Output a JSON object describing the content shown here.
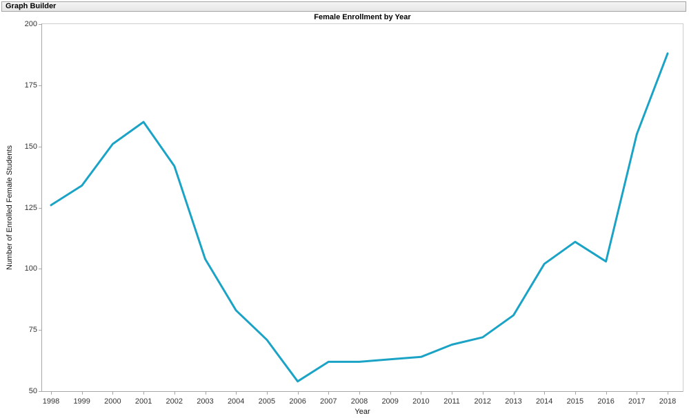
{
  "window": {
    "title": "Graph Builder"
  },
  "chart_data": {
    "type": "line",
    "title": "Female Enrollment by Year",
    "xlabel": "Year",
    "ylabel": "Number of Enrolled Female Students",
    "x": [
      1998,
      1999,
      2000,
      2001,
      2002,
      2003,
      2004,
      2005,
      2006,
      2007,
      2008,
      2009,
      2010,
      2011,
      2012,
      2013,
      2014,
      2015,
      2016,
      2017,
      2018
    ],
    "values": [
      126,
      134,
      151,
      160,
      142,
      104,
      83,
      71,
      54,
      62,
      62,
      63,
      64,
      69,
      72,
      81,
      102,
      111,
      103,
      155,
      188
    ],
    "ylim": [
      50,
      200
    ],
    "yticks": [
      50,
      75,
      100,
      125,
      150,
      175,
      200
    ],
    "line_color": "#1ba3c6",
    "grid": false,
    "legend_position": "none"
  }
}
